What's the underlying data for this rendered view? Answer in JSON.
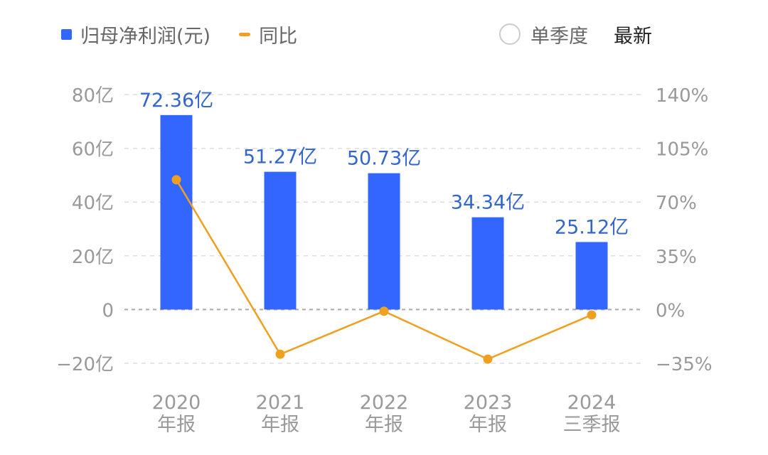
{
  "legend": {
    "bar_label": "归母净利润(元)",
    "line_label": "同比"
  },
  "controls": {
    "quarterly_label": "单季度",
    "latest_label": "最新"
  },
  "colors": {
    "bar": "#3366ff",
    "line": "#f0a020",
    "value_label": "#3366cc",
    "axis_text": "#999999",
    "grid": "#dddddd",
    "zero_line": "#aaaaaa"
  },
  "chart_data": {
    "type": "bar",
    "categories": [
      [
        "2020",
        "年报"
      ],
      [
        "2021",
        "年报"
      ],
      [
        "2022",
        "年报"
      ],
      [
        "2023",
        "年报"
      ],
      [
        "2024",
        "三季报"
      ]
    ],
    "series": [
      {
        "name": "归母净利润(元)",
        "type": "bar",
        "axis": "left",
        "values": [
          72.36,
          51.27,
          50.73,
          34.34,
          25.12
        ],
        "labels": [
          "72.36亿",
          "51.27亿",
          "50.73亿",
          "34.34亿",
          "25.12亿"
        ]
      },
      {
        "name": "同比",
        "type": "line",
        "axis": "right",
        "values": [
          84.5,
          -29.1,
          -1.1,
          -32.3,
          -3.5
        ]
      }
    ],
    "y_left": {
      "ticks": [
        80,
        60,
        40,
        20,
        0,
        -20
      ],
      "tick_labels": [
        "80亿",
        "60亿",
        "40亿",
        "20亿",
        "0",
        "−20亿"
      ],
      "range": [
        -20,
        80
      ]
    },
    "y_right": {
      "ticks": [
        140,
        105,
        70,
        35,
        0,
        -35
      ],
      "tick_labels": [
        "140%",
        "105%",
        "70%",
        "35%",
        "0%",
        "−35%"
      ],
      "range": [
        -35,
        140
      ]
    },
    "grid": true
  }
}
